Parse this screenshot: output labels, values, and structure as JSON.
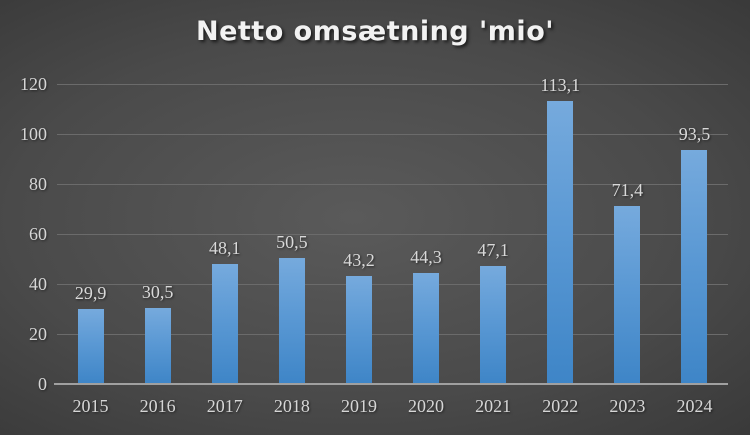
{
  "chart_data": {
    "type": "bar",
    "title": "Netto omsætning 'mio'",
    "categories": [
      "2015",
      "2016",
      "2017",
      "2018",
      "2019",
      "2020",
      "2021",
      "2022",
      "2023",
      "2024"
    ],
    "values": [
      29.9,
      30.5,
      48.1,
      50.5,
      43.2,
      44.3,
      47.1,
      113.1,
      71.4,
      93.5
    ],
    "value_labels": [
      "29,9",
      "30,5",
      "48,1",
      "50,5",
      "43,2",
      "44,3",
      "47,1",
      "113,1",
      "71,4",
      "93,5"
    ],
    "xlabel": "",
    "ylabel": "",
    "ylim": [
      0,
      120
    ],
    "y_ticks": [
      0,
      20,
      40,
      60,
      80,
      100,
      120
    ],
    "grid": true,
    "legend": "none",
    "colors": {
      "background_center": "#5a5a5a",
      "background_edge": "#242424",
      "bar_top": "#76aadd",
      "bar_bottom": "#3e85c7",
      "gridline": "#6b6b6b",
      "axis_line": "#a0a0a0",
      "tick_label": "#d6d6d6",
      "data_label": "#d9d9d9",
      "title": "#f2f2f2"
    }
  }
}
